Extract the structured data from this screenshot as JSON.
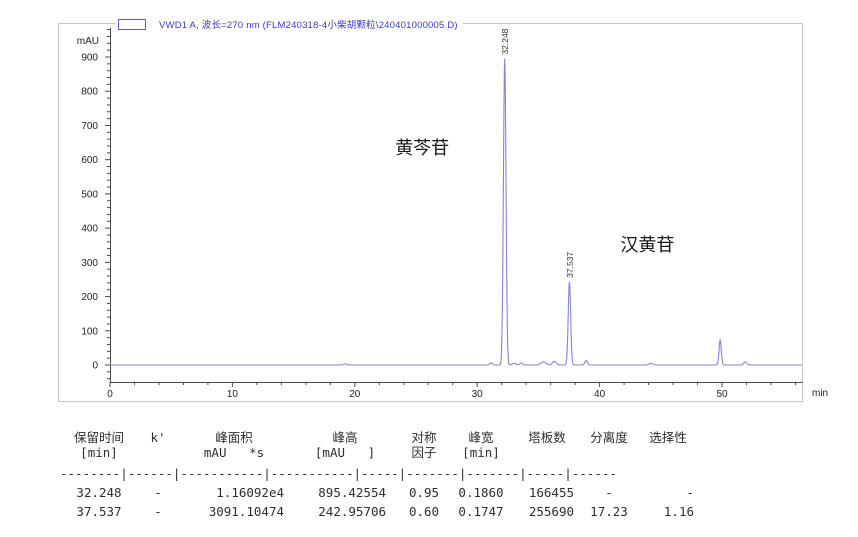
{
  "chart_data": {
    "type": "line",
    "legend": "VWD1 A, 波长=270 nm (FLM240318-4小柴胡颗粒\\240401000005.D)",
    "y_label": "mAU",
    "x_label": "min",
    "x_range": [
      0,
      56.6
    ],
    "y_range": [
      -50,
      1000
    ],
    "x_ticks": [
      0,
      10,
      20,
      30,
      40,
      50
    ],
    "y_ticks": [
      0,
      100,
      200,
      300,
      400,
      500,
      600,
      700,
      800,
      900
    ],
    "grid": false,
    "legend_position": "top-left",
    "curve_color": "#8486d0",
    "peaks": [
      {
        "rt": 32.248,
        "height_mau": 895.42554,
        "sigma_min": 0.105,
        "label": "32.248"
      },
      {
        "rt": 37.537,
        "height_mau": 242.95706,
        "sigma_min": 0.1,
        "label": "37.537"
      }
    ],
    "minor_peaks": [
      {
        "rt": 19.2,
        "height_mau": 3,
        "sigma_min": 0.15
      },
      {
        "rt": 31.15,
        "height_mau": 6,
        "sigma_min": 0.12
      },
      {
        "rt": 33.0,
        "height_mau": 5,
        "sigma_min": 0.15
      },
      {
        "rt": 33.6,
        "height_mau": 6,
        "sigma_min": 0.12
      },
      {
        "rt": 35.4,
        "height_mau": 9,
        "sigma_min": 0.2
      },
      {
        "rt": 36.3,
        "height_mau": 11,
        "sigma_min": 0.15
      },
      {
        "rt": 38.9,
        "height_mau": 13,
        "sigma_min": 0.1
      },
      {
        "rt": 44.2,
        "height_mau": 5,
        "sigma_min": 0.15
      },
      {
        "rt": 49.85,
        "height_mau": 73,
        "sigma_min": 0.09
      },
      {
        "rt": 51.9,
        "height_mau": 9,
        "sigma_min": 0.12
      }
    ],
    "annotations": [
      {
        "text": "黄芩苷",
        "x_min": 23.3,
        "y_mau": 628
      },
      {
        "text": "汉黄苷",
        "x_min": 41.7,
        "y_mau": 345
      }
    ]
  },
  "table": {
    "columns": [
      {
        "name": "保留时间",
        "unit": "[min]"
      },
      {
        "name": "k'",
        "unit": ""
      },
      {
        "name": "峰面积",
        "unit": "mAU   *s"
      },
      {
        "name": "峰高",
        "unit": "[mAU   ]"
      },
      {
        "name": "对称",
        "unit": "因子"
      },
      {
        "name": "峰宽",
        "unit": "[min]"
      },
      {
        "name": "塔板数",
        "unit": ""
      },
      {
        "name": "分离度",
        "unit": ""
      },
      {
        "name": "选择性",
        "unit": ""
      }
    ],
    "separator": "--------|------|-----------|-----------|-----|-------|-------|-----|------",
    "rows": [
      {
        "cells": [
          "32.248",
          "-",
          "1.16092e4",
          "895.42554",
          "0.95",
          "0.1860",
          "166455",
          "-",
          "-"
        ]
      },
      {
        "cells": [
          "37.537",
          "-",
          "3091.10474",
          "242.95706",
          "0.60",
          "0.1747",
          "255690",
          "17.23",
          "1.16"
        ]
      }
    ]
  }
}
